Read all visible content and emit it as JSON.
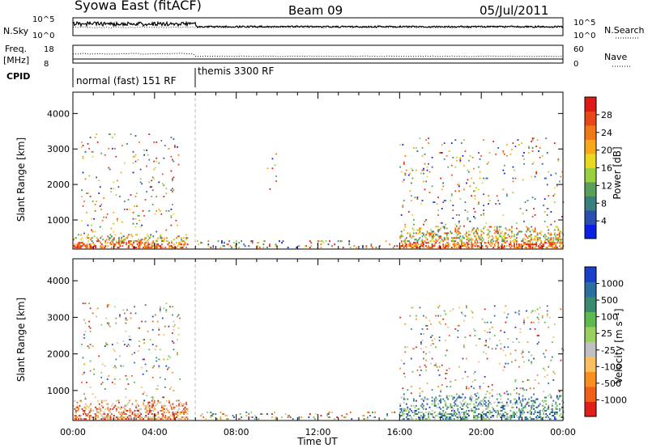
{
  "header": {
    "station": "Syowa East (fitACF)",
    "beam": "Beam 09",
    "date": "05/Jul/2011"
  },
  "noise_panel": {
    "left_label": "N.Sky",
    "right_label": "N.Search",
    "left_ticks": [
      "10^5",
      "10^0"
    ],
    "right_ticks": [
      "10^5",
      "10^0"
    ]
  },
  "freq_panel": {
    "left_label_1": "Freq.",
    "left_label_2": "[MHz]",
    "left_ticks": [
      "18",
      "8"
    ],
    "right_label": "Nave",
    "right_ticks": [
      "60",
      "0"
    ]
  },
  "cpid_panel": {
    "label": "CPID",
    "segments": [
      "normal (fast) 151 RF",
      "themis 3300 RF"
    ]
  },
  "x_axis": {
    "label": "Time UT",
    "ticks": [
      "00:00",
      "04:00",
      "08:00",
      "12:00",
      "16:00",
      "20:00",
      "00:00"
    ]
  },
  "chart_data": [
    {
      "type": "heatmap",
      "title": "",
      "xlabel": "Time UT",
      "ylabel": "Slant Range [km]",
      "x_ticks": [
        "00:00",
        "04:00",
        "08:00",
        "12:00",
        "16:00",
        "20:00",
        "00:00"
      ],
      "y_ticks": [
        1000,
        2000,
        3000,
        4000
      ],
      "xlim_hours": [
        0,
        24
      ],
      "ylim_km": [
        180,
        4600
      ],
      "colorbar": {
        "label": "Power [dB]",
        "ticks": [
          "4",
          "8",
          "12",
          "16",
          "20",
          "24",
          "28"
        ],
        "colors": [
          "#0a1fe6",
          "#2b4fb0",
          "#3a7f80",
          "#5aa05a",
          "#9ad040",
          "#e8d820",
          "#f8a818",
          "#f07818",
          "#e84818",
          "#e01818"
        ]
      },
      "regions": [
        {
          "t0": 0.0,
          "t1": 5.6,
          "r0": 200,
          "r1": 600,
          "level": "high"
        },
        {
          "t0": 0.4,
          "t1": 5.2,
          "r0": 600,
          "r1": 3400,
          "level": "sparse"
        },
        {
          "t0": 6.0,
          "t1": 16.0,
          "r0": 200,
          "r1": 400,
          "level": "sparse-low"
        },
        {
          "t0": 9.5,
          "t1": 10.0,
          "r0": 1800,
          "r1": 2900,
          "level": "sparse"
        },
        {
          "t0": 16.0,
          "t1": 24.0,
          "r0": 200,
          "r1": 800,
          "level": "high"
        },
        {
          "t0": 16.0,
          "t1": 24.0,
          "r0": 800,
          "r1": 3300,
          "level": "sparse"
        }
      ]
    },
    {
      "type": "heatmap",
      "title": "",
      "xlabel": "Time UT",
      "ylabel": "Slant Range [km]",
      "x_ticks": [
        "00:00",
        "04:00",
        "08:00",
        "12:00",
        "16:00",
        "20:00",
        "00:00"
      ],
      "y_ticks": [
        1000,
        2000,
        3000,
        4000
      ],
      "xlim_hours": [
        0,
        24
      ],
      "ylim_km": [
        180,
        4600
      ],
      "colorbar": {
        "label": "Velocity [m s⁻¹]",
        "ticks": [
          "1000",
          "500",
          "100",
          "25",
          "-25",
          "-100",
          "-500",
          "-1000"
        ],
        "colors": [
          "#1a40c8",
          "#2a6fa0",
          "#3a8a70",
          "#5fb850",
          "#9ad060",
          "#c0c0c0",
          "#f8c060",
          "#f89020",
          "#f06018",
          "#e02018"
        ]
      },
      "regions": [
        {
          "t0": 0.0,
          "t1": 5.6,
          "r0": 200,
          "r1": 700,
          "level": "negative"
        },
        {
          "t0": 0.4,
          "t1": 5.2,
          "r0": 700,
          "r1": 3400,
          "level": "sparse"
        },
        {
          "t0": 6.0,
          "t1": 16.0,
          "r0": 200,
          "r1": 400,
          "level": "sparse-low"
        },
        {
          "t0": 16.0,
          "t1": 24.0,
          "r0": 200,
          "r1": 900,
          "level": "positive"
        },
        {
          "t0": 16.0,
          "t1": 24.0,
          "r0": 900,
          "r1": 3300,
          "level": "sparse"
        }
      ]
    }
  ]
}
